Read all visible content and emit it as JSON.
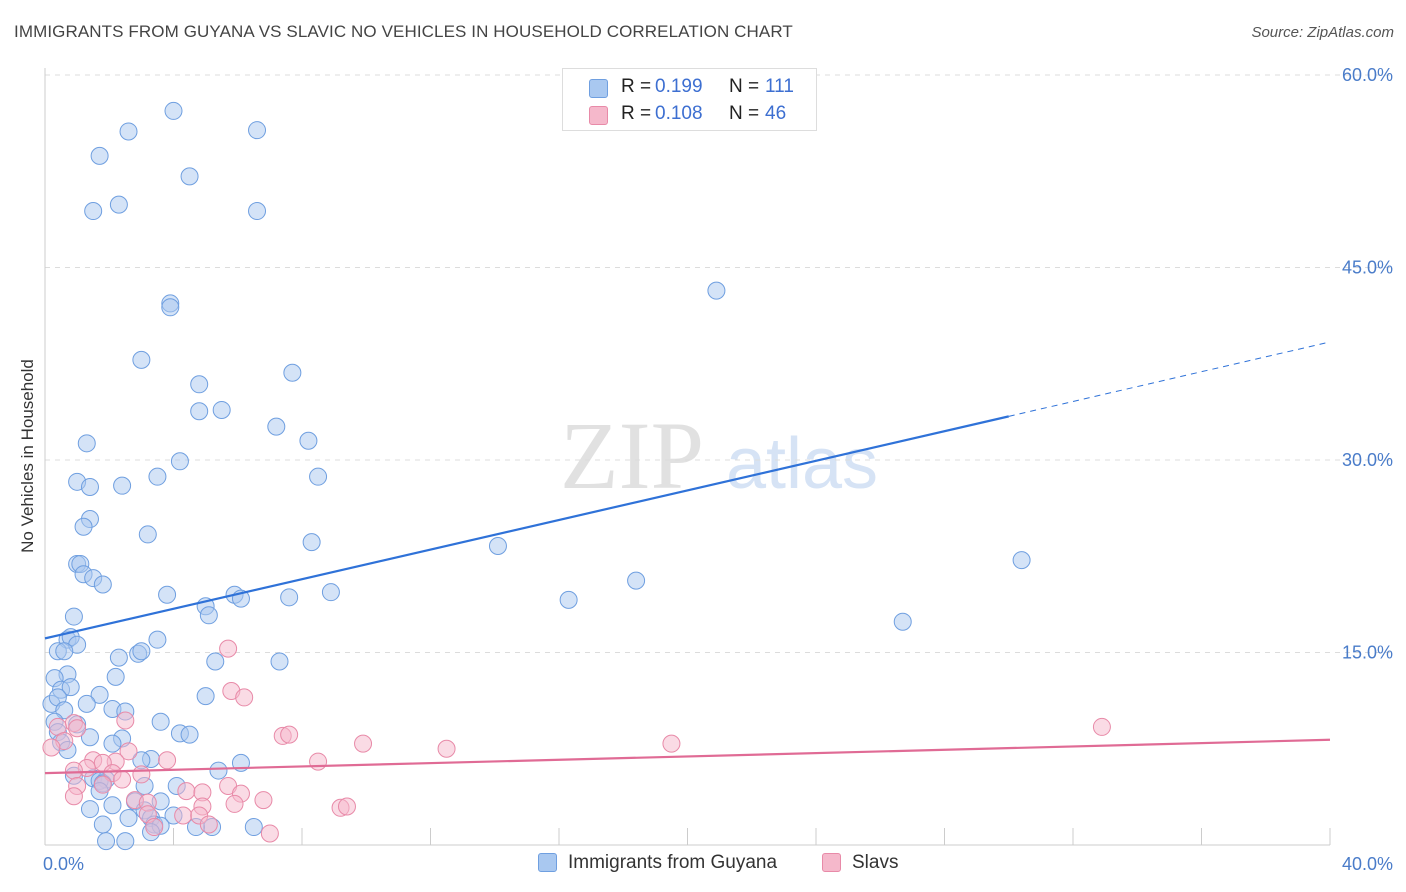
{
  "header": {
    "title": "IMMIGRANTS FROM GUYANA VS SLAVIC NO VEHICLES IN HOUSEHOLD CORRELATION CHART",
    "source": "Source: ZipAtlas.com"
  },
  "watermark": {
    "zip": "ZIP",
    "atlas": "atlas"
  },
  "legend": {
    "r_label": "R =",
    "n_label": "N =",
    "rows": [
      {
        "name": "Immigrants from Guyana",
        "r": "0.199",
        "n": "111",
        "color": "#a9c8f0",
        "edge": "#6f9fe0"
      },
      {
        "name": "Slavs",
        "r": "0.108",
        "n": "46",
        "color": "#f5b8cb",
        "edge": "#e88aa8"
      }
    ]
  },
  "chart_data": {
    "type": "scatter",
    "title": "IMMIGRANTS FROM GUYANA VS SLAVIC NO VEHICLES IN HOUSEHOLD CORRELATION CHART",
    "xlabel": "",
    "ylabel": "No Vehicles in Household",
    "xlim": [
      0,
      40
    ],
    "ylim": [
      0,
      60
    ],
    "x_tick_labels": [
      "0.0%",
      "40.0%"
    ],
    "y_ticks": [
      15,
      30,
      45,
      60
    ],
    "y_tick_labels": [
      "15.0%",
      "30.0%",
      "45.0%",
      "60.0%"
    ],
    "grid": true,
    "legend_position": "top-center",
    "series": [
      {
        "name": "Immigrants from Guyana",
        "color": "#a9c8f0",
        "line_color": "#2f72d8",
        "trend": {
          "x0": 0,
          "y0": 16.1,
          "x1": 30,
          "y1": 33.4,
          "dash_to_x": 40,
          "dash_to_y": 39.2
        },
        "points": [
          [
            2.6,
            55.6
          ],
          [
            4.0,
            57.2
          ],
          [
            6.6,
            55.7
          ],
          [
            1.7,
            53.7
          ],
          [
            4.5,
            52.1
          ],
          [
            2.3,
            49.9
          ],
          [
            1.5,
            49.4
          ],
          [
            6.6,
            49.4
          ],
          [
            3.9,
            42.2
          ],
          [
            3.9,
            41.9
          ],
          [
            20.9,
            43.2
          ],
          [
            3.0,
            37.8
          ],
          [
            7.7,
            36.8
          ],
          [
            4.8,
            35.9
          ],
          [
            4.8,
            33.8
          ],
          [
            5.5,
            33.9
          ],
          [
            7.2,
            32.6
          ],
          [
            8.2,
            31.5
          ],
          [
            1.3,
            31.3
          ],
          [
            4.2,
            29.9
          ],
          [
            3.5,
            28.7
          ],
          [
            8.5,
            28.7
          ],
          [
            1.0,
            28.3
          ],
          [
            2.4,
            28.0
          ],
          [
            1.4,
            27.9
          ],
          [
            1.4,
            25.4
          ],
          [
            1.2,
            24.8
          ],
          [
            3.2,
            24.2
          ],
          [
            8.3,
            23.6
          ],
          [
            14.1,
            23.3
          ],
          [
            30.4,
            22.2
          ],
          [
            1.0,
            21.9
          ],
          [
            1.1,
            21.9
          ],
          [
            1.2,
            21.1
          ],
          [
            1.5,
            20.8
          ],
          [
            1.8,
            20.3
          ],
          [
            18.4,
            20.6
          ],
          [
            3.8,
            19.5
          ],
          [
            8.9,
            19.7
          ],
          [
            5.9,
            19.5
          ],
          [
            6.1,
            19.2
          ],
          [
            7.6,
            19.3
          ],
          [
            16.3,
            19.1
          ],
          [
            5.0,
            18.6
          ],
          [
            5.1,
            17.9
          ],
          [
            0.9,
            17.8
          ],
          [
            26.7,
            17.4
          ],
          [
            0.7,
            16.0
          ],
          [
            0.8,
            16.2
          ],
          [
            1.0,
            15.6
          ],
          [
            3.5,
            16.0
          ],
          [
            0.4,
            15.1
          ],
          [
            0.6,
            15.1
          ],
          [
            2.3,
            14.6
          ],
          [
            2.9,
            14.9
          ],
          [
            3.0,
            15.1
          ],
          [
            5.3,
            14.3
          ],
          [
            7.3,
            14.3
          ],
          [
            0.7,
            13.3
          ],
          [
            2.2,
            13.1
          ],
          [
            0.3,
            13.0
          ],
          [
            0.5,
            12.1
          ],
          [
            0.8,
            12.3
          ],
          [
            1.7,
            11.7
          ],
          [
            5.0,
            11.6
          ],
          [
            0.2,
            11.0
          ],
          [
            0.4,
            11.5
          ],
          [
            1.3,
            11.0
          ],
          [
            2.1,
            10.6
          ],
          [
            0.6,
            10.5
          ],
          [
            2.5,
            10.4
          ],
          [
            0.3,
            9.6
          ],
          [
            1.0,
            9.4
          ],
          [
            3.6,
            9.6
          ],
          [
            0.4,
            8.8
          ],
          [
            2.4,
            8.3
          ],
          [
            4.2,
            8.7
          ],
          [
            4.5,
            8.6
          ],
          [
            1.4,
            8.4
          ],
          [
            0.5,
            8.0
          ],
          [
            2.1,
            7.9
          ],
          [
            0.7,
            7.4
          ],
          [
            3.3,
            6.7
          ],
          [
            3.0,
            6.6
          ],
          [
            6.1,
            6.4
          ],
          [
            5.4,
            5.8
          ],
          [
            0.9,
            5.4
          ],
          [
            1.5,
            5.2
          ],
          [
            1.9,
            5.1
          ],
          [
            1.7,
            5.0
          ],
          [
            1.8,
            4.8
          ],
          [
            3.1,
            4.6
          ],
          [
            4.1,
            4.6
          ],
          [
            1.7,
            4.2
          ],
          [
            2.8,
            3.4
          ],
          [
            3.6,
            3.4
          ],
          [
            2.1,
            3.1
          ],
          [
            1.4,
            2.8
          ],
          [
            4.0,
            2.3
          ],
          [
            3.1,
            2.7
          ],
          [
            3.3,
            2.1
          ],
          [
            2.6,
            2.1
          ],
          [
            1.8,
            1.6
          ],
          [
            3.4,
            1.6
          ],
          [
            3.6,
            1.5
          ],
          [
            5.2,
            1.4
          ],
          [
            6.5,
            1.4
          ],
          [
            4.7,
            1.4
          ],
          [
            3.3,
            1.0
          ],
          [
            1.9,
            0.3
          ],
          [
            2.5,
            0.3
          ]
        ]
      },
      {
        "name": "Slavs",
        "color": "#f5b8cb",
        "line_color": "#e06b95",
        "trend": {
          "x0": 0,
          "y0": 5.6,
          "x1": 40,
          "y1": 8.2
        },
        "points": [
          [
            5.7,
            15.3
          ],
          [
            5.8,
            12.0
          ],
          [
            6.2,
            11.5
          ],
          [
            2.5,
            9.7
          ],
          [
            0.9,
            9.5
          ],
          [
            0.4,
            9.2
          ],
          [
            1.0,
            9.1
          ],
          [
            7.4,
            8.5
          ],
          [
            7.6,
            8.6
          ],
          [
            9.9,
            7.9
          ],
          [
            12.5,
            7.5
          ],
          [
            19.5,
            7.9
          ],
          [
            32.9,
            9.2
          ],
          [
            0.6,
            8.1
          ],
          [
            0.2,
            7.6
          ],
          [
            2.6,
            7.3
          ],
          [
            1.5,
            6.6
          ],
          [
            2.2,
            6.5
          ],
          [
            1.8,
            6.4
          ],
          [
            8.5,
            6.5
          ],
          [
            3.8,
            6.6
          ],
          [
            1.3,
            6.0
          ],
          [
            0.9,
            5.8
          ],
          [
            2.1,
            5.6
          ],
          [
            3.0,
            5.5
          ],
          [
            2.4,
            5.1
          ],
          [
            1.8,
            4.7
          ],
          [
            1.0,
            4.6
          ],
          [
            5.7,
            4.6
          ],
          [
            4.4,
            4.2
          ],
          [
            4.9,
            4.1
          ],
          [
            6.1,
            4.0
          ],
          [
            0.9,
            3.8
          ],
          [
            2.8,
            3.5
          ],
          [
            3.2,
            3.3
          ],
          [
            4.9,
            3.0
          ],
          [
            6.8,
            3.5
          ],
          [
            5.9,
            3.2
          ],
          [
            9.2,
            2.9
          ],
          [
            9.4,
            3.0
          ],
          [
            3.2,
            2.4
          ],
          [
            4.3,
            2.3
          ],
          [
            4.8,
            2.3
          ],
          [
            5.1,
            1.6
          ],
          [
            3.4,
            1.4
          ],
          [
            7.0,
            0.9
          ]
        ]
      }
    ]
  }
}
